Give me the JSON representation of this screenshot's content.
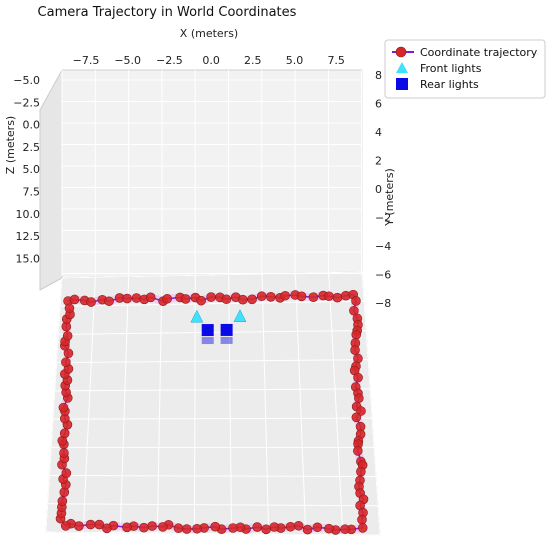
{
  "chart_data": {
    "type": "scatter",
    "title": "Camera Trajectory in World Coordinates",
    "xlabel": "X (meters)",
    "ylabel": "Y (meters)",
    "zlabel": "Z (meters)",
    "x_ticks": [
      "−7.5",
      "−5.0",
      "−2.5",
      "0.0",
      "2.5",
      "5.0",
      "7.5"
    ],
    "y_ticks": [
      "8",
      "6",
      "4",
      "2",
      "0",
      "−2",
      "−4",
      "−6",
      "−8"
    ],
    "z_ticks": [
      "−5.0",
      "−2.5",
      "0.0",
      "2.5",
      "5.0",
      "7.5",
      "10.0",
      "12.5",
      "15.0"
    ],
    "xlim": [
      -10,
      10
    ],
    "ylim": [
      -10,
      10
    ],
    "zlim": [
      -5,
      15
    ],
    "grid": true,
    "legend_position": "top-right",
    "series": [
      {
        "name": "Coordinate trajectory",
        "marker": "circle",
        "color": "#d62728",
        "line_color": "#7a1fd6",
        "path": [
          [
            -9.5,
            -8.2
          ],
          [
            9.4,
            -8.2
          ],
          [
            9.0,
            9.5
          ],
          [
            -9.0,
            9.5
          ],
          [
            -9.5,
            -8.2
          ]
        ]
      },
      {
        "name": "Front lights",
        "marker": "triangle",
        "color": "#40e0ff",
        "points": [
          [
            -1.0,
            -5.2
          ],
          [
            1.8,
            -5.2
          ]
        ]
      },
      {
        "name": "Rear lights",
        "marker": "square",
        "color": "#0a0ae6",
        "points": [
          [
            -0.3,
            -1.1
          ],
          [
            0.9,
            -1.1
          ]
        ]
      }
    ]
  }
}
